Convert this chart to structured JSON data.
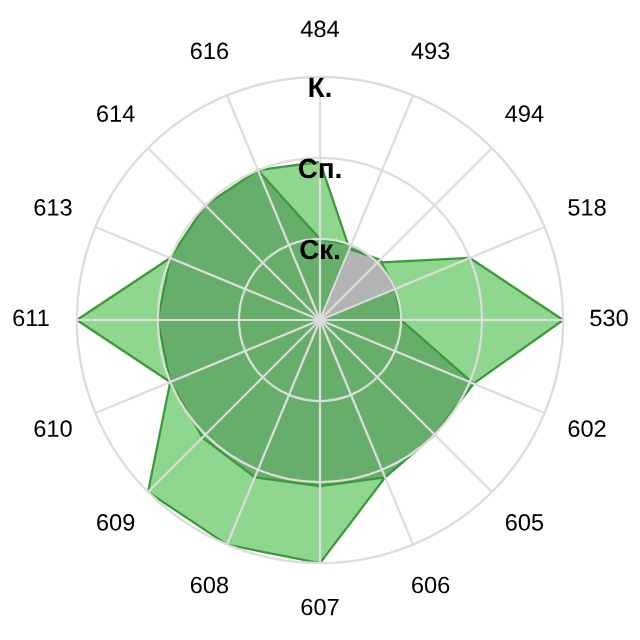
{
  "chart_data": {
    "type": "radar",
    "categories": [
      "484",
      "493",
      "494",
      "518",
      "530",
      "602",
      "605",
      "606",
      "607",
      "608",
      "609",
      "610",
      "611",
      "613",
      "614",
      "616"
    ],
    "series": [
      {
        "color": "#8fd68f",
        "values": [
          1.95,
          0.95,
          1.0,
          2.0,
          3.0,
          2.05,
          2.0,
          2.1,
          3.0,
          3.0,
          3.0,
          2.0,
          3.0,
          2.0,
          2.0,
          2.0
        ]
      },
      {
        "color": "#66ae6a",
        "values": [
          1.0,
          1.0,
          1.0,
          1.0,
          1.0,
          2.05,
          2.0,
          2.1,
          2.05,
          2.1,
          2.05,
          2.0,
          2.0,
          2.0,
          2.0,
          2.0
        ]
      },
      {
        "color": "#b4b4b4",
        "values": [
          0.0,
          0.95,
          1.05,
          1.0,
          0.0,
          0.0,
          0.0,
          0.0,
          0.0,
          0.0,
          0.0,
          0.0,
          0.0,
          0.0,
          0.0,
          0.0
        ]
      }
    ],
    "ylim": [
      0,
      3
    ],
    "yticks": [
      {
        "value": 1,
        "label": "Ск."
      },
      {
        "value": 2,
        "label": "Сп."
      },
      {
        "value": 3,
        "label": "К."
      }
    ],
    "grid": true,
    "marker": "none"
  }
}
